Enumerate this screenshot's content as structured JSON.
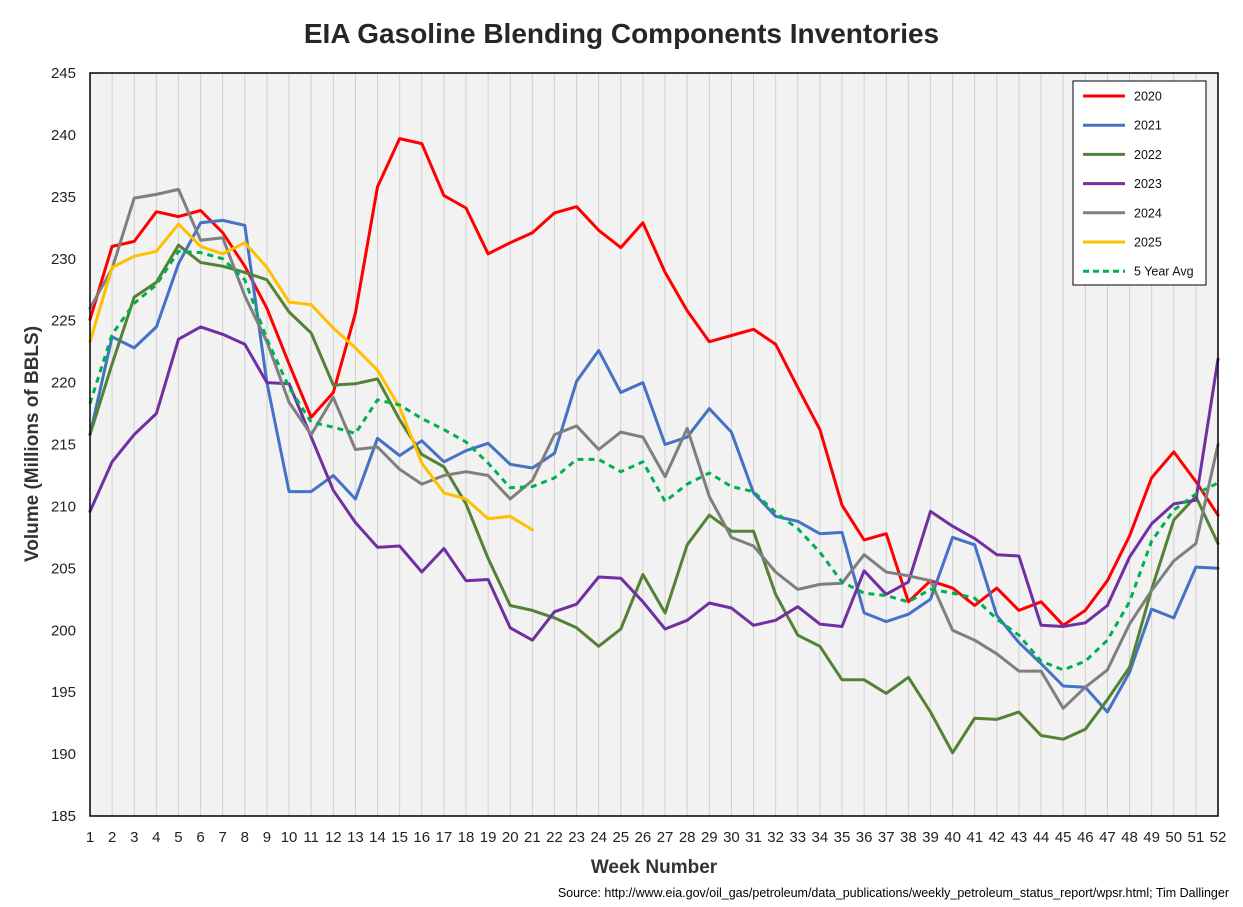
{
  "chart_data": {
    "type": "line",
    "title": "EIA Gasoline Blending Components Inventories",
    "xlabel": "Week Number",
    "ylabel": "Volume (Millions of BBLS)",
    "ylim": [
      185,
      245
    ],
    "yticks": [
      185,
      190,
      195,
      200,
      205,
      210,
      215,
      220,
      225,
      230,
      235,
      240,
      245
    ],
    "x": [
      1,
      2,
      3,
      4,
      5,
      6,
      7,
      8,
      9,
      10,
      11,
      12,
      13,
      14,
      15,
      16,
      17,
      18,
      19,
      20,
      21,
      22,
      23,
      24,
      25,
      26,
      27,
      28,
      29,
      30,
      31,
      32,
      33,
      34,
      35,
      36,
      37,
      38,
      39,
      40,
      41,
      42,
      43,
      44,
      45,
      46,
      47,
      48,
      49,
      50,
      51,
      52
    ],
    "grid": "vertical",
    "legend_position": "top-right",
    "series": [
      {
        "name": "2020",
        "color": "#ff0000",
        "dashed": false,
        "values": [
          225.1,
          231.0,
          231.4,
          233.8,
          233.4,
          233.9,
          232.1,
          229.4,
          226.0,
          221.5,
          217.2,
          219.2,
          225.6,
          235.8,
          239.7,
          239.3,
          235.1,
          234.1,
          230.4,
          231.3,
          232.1,
          233.7,
          234.2,
          232.3,
          230.9,
          232.9,
          228.9,
          225.8,
          223.3,
          223.8,
          224.3,
          223.1,
          219.6,
          216.2,
          210.1,
          207.3,
          207.8,
          202.3,
          204.0,
          203.4,
          202.0,
          203.4,
          201.6,
          202.3,
          200.4,
          201.6,
          204.0,
          207.6,
          212.3,
          214.4,
          212.0,
          209.3
        ]
      },
      {
        "name": "2021",
        "color": "#4472c4",
        "dashed": false,
        "values": [
          215.8,
          223.7,
          222.8,
          224.5,
          229.6,
          232.9,
          233.1,
          232.7,
          220.0,
          211.2,
          211.2,
          212.5,
          210.6,
          215.5,
          214.1,
          215.3,
          213.6,
          214.5,
          215.1,
          213.4,
          213.1,
          214.3,
          220.1,
          222.6,
          219.2,
          220.0,
          215.0,
          215.6,
          217.9,
          216.0,
          211.1,
          209.2,
          208.8,
          207.8,
          207.9,
          201.4,
          200.7,
          201.3,
          202.5,
          207.5,
          206.9,
          201.2,
          199.0,
          197.3,
          195.5,
          195.4,
          193.4,
          196.6,
          201.7,
          201.0,
          205.1,
          205.0
        ]
      },
      {
        "name": "2022",
        "color": "#548235",
        "dashed": false,
        "values": [
          215.8,
          221.5,
          226.9,
          228.1,
          231.1,
          229.7,
          229.4,
          228.9,
          228.3,
          225.7,
          224.0,
          219.8,
          219.9,
          220.3,
          217.0,
          214.2,
          213.2,
          210.2,
          205.8,
          202.0,
          201.6,
          201.0,
          200.2,
          198.7,
          200.1,
          204.5,
          201.4,
          206.9,
          209.3,
          208.0,
          208.0,
          202.9,
          199.6,
          198.7,
          196.0,
          196.0,
          194.9,
          196.2,
          193.4,
          190.1,
          192.9,
          192.8,
          193.4,
          191.5,
          191.2,
          192.0,
          194.4,
          197.0,
          203.3,
          208.9,
          210.8,
          207.0
        ]
      },
      {
        "name": "2023",
        "color": "#7030a0",
        "dashed": false,
        "values": [
          209.6,
          213.6,
          215.8,
          217.5,
          223.5,
          224.5,
          223.9,
          223.1,
          220.0,
          219.9,
          215.6,
          211.3,
          208.7,
          206.7,
          206.8,
          204.7,
          206.6,
          204.0,
          204.1,
          200.2,
          199.2,
          201.5,
          202.1,
          204.3,
          204.2,
          202.3,
          200.1,
          200.8,
          202.2,
          201.8,
          200.4,
          200.8,
          201.9,
          200.5,
          200.3,
          204.8,
          202.9,
          203.9,
          209.6,
          208.4,
          207.4,
          206.1,
          206.0,
          200.4,
          200.3,
          200.6,
          202.0,
          205.9,
          208.6,
          210.2,
          210.5,
          221.9
        ]
      },
      {
        "name": "2024",
        "color": "#7f7f7f",
        "dashed": false,
        "values": [
          226.0,
          229.2,
          234.9,
          235.2,
          235.6,
          231.5,
          231.7,
          227.0,
          223.3,
          218.4,
          215.8,
          218.8,
          214.6,
          214.8,
          213.0,
          211.8,
          212.5,
          212.8,
          212.5,
          210.6,
          212.1,
          215.8,
          216.5,
          214.6,
          216.0,
          215.6,
          212.4,
          216.3,
          210.8,
          207.5,
          206.8,
          204.7,
          203.3,
          203.7,
          203.8,
          206.1,
          204.7,
          204.4,
          204.0,
          200.0,
          199.2,
          198.1,
          196.7,
          196.7,
          193.7,
          195.4,
          196.8,
          200.5,
          203.2,
          205.6,
          207.0,
          215.0
        ]
      },
      {
        "name": "2025",
        "color": "#ffc000",
        "dashed": false,
        "values": [
          223.3,
          229.3,
          230.2,
          230.6,
          232.8,
          231.0,
          230.4,
          231.3,
          229.3,
          226.5,
          226.3,
          224.4,
          222.8,
          221.0,
          218.0,
          213.5,
          211.1,
          210.6,
          209.0,
          209.2,
          208.1,
          null,
          null,
          null,
          null,
          null,
          null,
          null,
          null,
          null,
          null,
          null,
          null,
          null,
          null,
          null,
          null,
          null,
          null,
          null,
          null,
          null,
          null,
          null,
          null,
          null,
          null,
          null,
          null,
          null,
          null,
          null
        ]
      },
      {
        "name": "5 Year Avg",
        "color": "#00b050",
        "dashed": true,
        "values": [
          218.3,
          223.9,
          226.4,
          227.9,
          230.6,
          230.5,
          230.0,
          228.3,
          223.5,
          219.6,
          216.8,
          216.4,
          215.9,
          218.6,
          218.2,
          217.1,
          216.2,
          215.2,
          213.5,
          211.5,
          211.6,
          212.3,
          213.8,
          213.8,
          212.8,
          213.6,
          210.4,
          211.8,
          212.7,
          211.6,
          211.2,
          209.5,
          208.2,
          206.3,
          203.9,
          203.0,
          202.8,
          202.3,
          203.3,
          203.0,
          202.6,
          200.9,
          199.6,
          197.5,
          196.8,
          197.5,
          199.2,
          202.3,
          207.2,
          209.7,
          211.0,
          211.9
        ]
      }
    ]
  },
  "source_note": "Source: http://www.eia.gov/oil_gas/petroleum/data_publications/weekly_petroleum_status_report/wpsr.html; Tim Dallinger"
}
